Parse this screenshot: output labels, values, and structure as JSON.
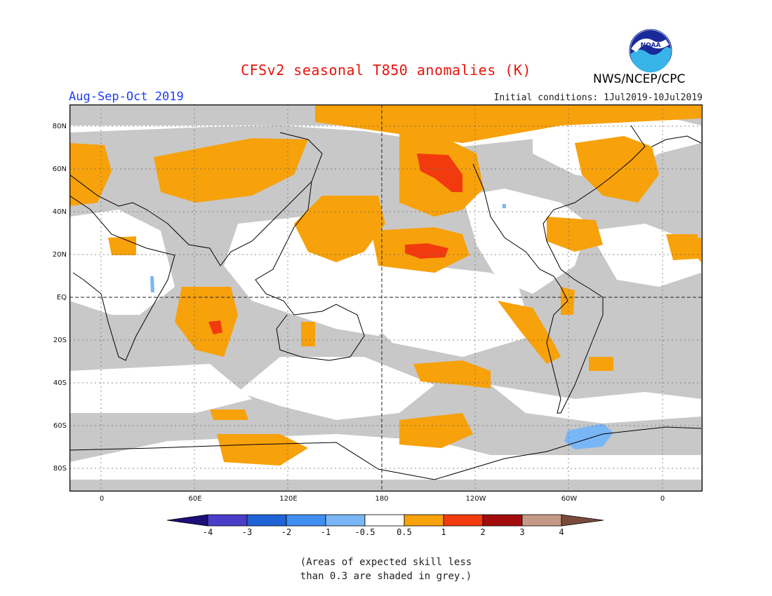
{
  "title": "CFSv2 seasonal T850 anomalies (K)",
  "season": "Aug-Sep-Oct 2019",
  "agency": "NWS/NCEP/CPC",
  "logo_text": "NOAA",
  "initial_conditions": "Initial conditions: 1Jul2019-10Jul2019",
  "lat_labels": [
    "80N",
    "60N",
    "40N",
    "20N",
    "EQ",
    "20S",
    "40S",
    "60S",
    "80S"
  ],
  "lon_labels": [
    "0",
    "60E",
    "120E",
    "180",
    "120W",
    "60W",
    "0"
  ],
  "colorbar": {
    "labels": [
      "-4",
      "-3",
      "-2",
      "-1",
      "-0.5",
      "0.5",
      "1",
      "2",
      "3",
      "4"
    ],
    "colors": [
      "#1d0f7a",
      "#4a3ec9",
      "#1f63d6",
      "#3f8ef0",
      "#79b6f5",
      "#ffffff",
      "#f7a10b",
      "#f23a0f",
      "#a20c0c",
      "#c49a86",
      "#7a4b3c"
    ]
  },
  "note_line1": "(Areas of expected skill less",
  "note_line2": "than 0.3 are shaded in grey.)"
}
